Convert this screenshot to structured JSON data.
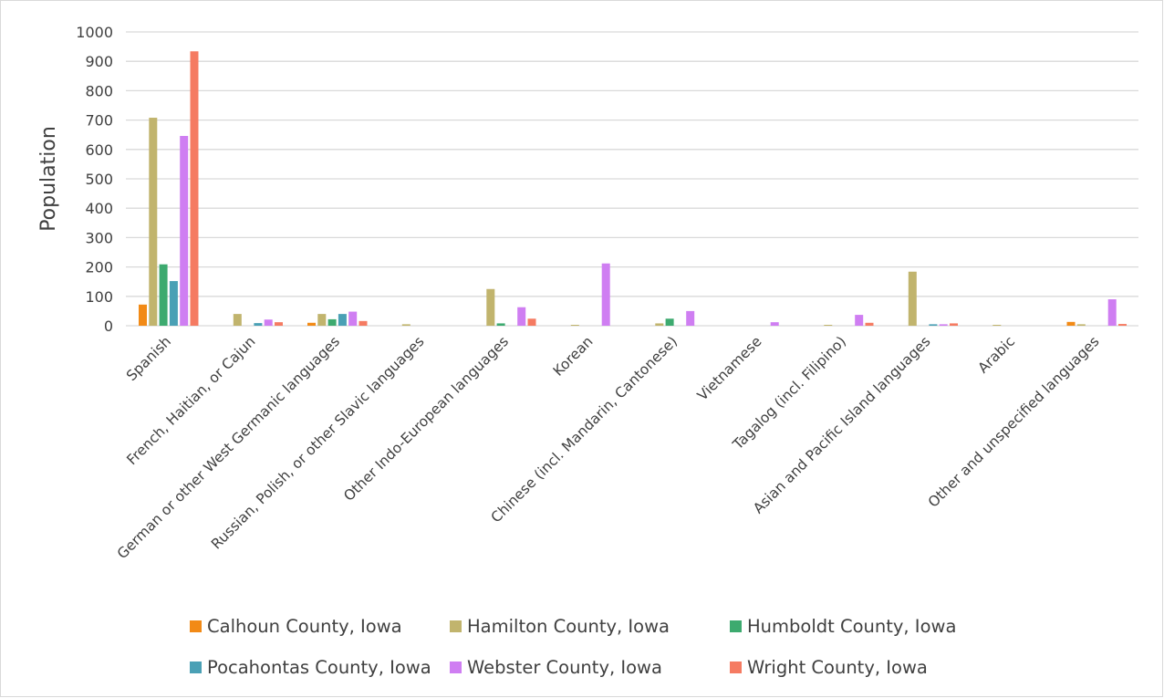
{
  "chart_data": {
    "type": "bar",
    "title": "",
    "xlabel": "",
    "ylabel": "Population",
    "ylim": [
      0,
      1000
    ],
    "yticks": [
      0,
      100,
      200,
      300,
      400,
      500,
      600,
      700,
      800,
      900,
      1000
    ],
    "grid": true,
    "legend_position": "bottom",
    "categories": [
      "Spanish",
      "French, Haitian, or Cajun",
      "German or other West Germanic languages",
      "Russian, Polish, or other Slavic languages",
      "Other Indo-European languages",
      "Korean",
      "Chinese (incl. Mandarin, Cantonese)",
      "Vietnamese",
      "Tagalog (incl. Filipino)",
      "Asian and Pacific Island languages",
      "Arabic",
      "Other and unspecified languages"
    ],
    "series": [
      {
        "name": "Calhoun County, Iowa",
        "color": "#f28a16",
        "values": [
          72,
          0,
          10,
          0,
          0,
          0,
          0,
          0,
          0,
          0,
          0,
          13
        ]
      },
      {
        "name": "Hamilton County, Iowa",
        "color": "#c1b46d",
        "values": [
          708,
          40,
          40,
          5,
          125,
          2,
          8,
          0,
          3,
          184,
          2,
          5
        ]
      },
      {
        "name": "Humboldt County, Iowa",
        "color": "#3daa6f",
        "values": [
          209,
          0,
          22,
          0,
          8,
          0,
          24,
          0,
          0,
          0,
          0,
          0
        ]
      },
      {
        "name": "Pocahontas County, Iowa",
        "color": "#4aa0b5",
        "values": [
          152,
          9,
          40,
          0,
          0,
          0,
          0,
          0,
          0,
          5,
          0,
          0
        ]
      },
      {
        "name": "Webster County, Iowa",
        "color": "#cf7ef2",
        "values": [
          646,
          21,
          48,
          0,
          63,
          212,
          50,
          12,
          37,
          5,
          0,
          90
        ]
      },
      {
        "name": "Wright County, Iowa",
        "color": "#f57b62",
        "values": [
          934,
          12,
          16,
          0,
          24,
          0,
          0,
          0,
          10,
          8,
          0,
          6
        ]
      }
    ]
  }
}
